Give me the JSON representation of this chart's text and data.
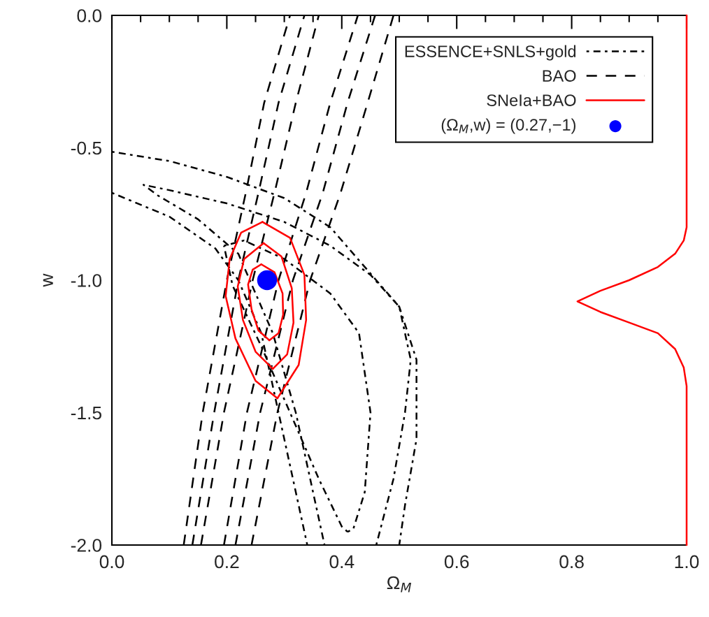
{
  "chart_data": {
    "type": "line",
    "xlabel": "Ω$_{M}$",
    "ylabel": "w",
    "xlim": [
      0.0,
      1.0
    ],
    "ylim": [
      -2.0,
      0.0
    ],
    "xticks": [
      {
        "value": 0.0,
        "label": "0.0"
      },
      0.2,
      0.4,
      0.6,
      0.8,
      {
        "value": 1.0,
        "label": "1.0"
      }
    ],
    "yticks": [
      {
        "value": -2.0,
        "label": "-2.0"
      },
      -1.5,
      {
        "value": -1.0,
        "label": "-1.0"
      },
      -0.5,
      {
        "value": 0.0,
        "label": "0.0"
      }
    ],
    "grid": false,
    "legend": "top right",
    "series": [
      {
        "name": "ESSENCE+SNLS+gold",
        "color": "#000000",
        "line_style": "dotted",
        "x": [
          0.0,
          0.1,
          0.2,
          0.3,
          0.38,
          0.42,
          0.5,
          0.53,
          0.53,
          0.51,
          0.5
        ],
        "values": [
          -0.515,
          -0.55,
          -0.61,
          -0.69,
          -0.8,
          -0.9,
          -1.1,
          -1.3,
          -1.6,
          -1.85,
          -2.0
        ]
      },
      {
        "color": "#000000",
        "line_style": "dotted",
        "x": [
          0.0,
          0.1,
          0.18,
          0.22,
          0.26,
          0.29,
          0.32,
          0.34
        ],
        "values": [
          -0.67,
          -0.76,
          -0.88,
          -1.0,
          -1.2,
          -1.5,
          -1.8,
          -2.0
        ]
      },
      {
        "color": "#000000",
        "line_style": "dotted",
        "x": [
          0.46,
          0.49,
          0.51,
          0.52,
          0.5,
          0.45,
          0.38,
          0.3,
          0.2,
          0.1,
          0.055,
          0.08,
          0.15,
          0.22,
          0.28,
          0.32,
          0.35,
          0.37
        ],
        "values": [
          -2.0,
          -1.75,
          -1.5,
          -1.3,
          -1.1,
          -0.98,
          -0.87,
          -0.78,
          -0.71,
          -0.66,
          -0.64,
          -0.68,
          -0.77,
          -0.9,
          -1.2,
          -1.5,
          -1.8,
          -2.0
        ]
      },
      {
        "color": "#000000",
        "line_style": "dotted",
        "x": [
          0.195,
          0.23,
          0.3,
          0.38,
          0.43,
          0.45,
          0.44,
          0.42,
          0.41
        ],
        "values": [
          -0.87,
          -0.85,
          -0.92,
          -1.05,
          -1.2,
          -1.5,
          -1.8,
          -1.94,
          -1.95
        ]
      },
      {
        "color": "#000000",
        "line_style": "dotted",
        "x": [
          0.41,
          0.4,
          0.36,
          0.31,
          0.26,
          0.21,
          0.195
        ],
        "values": [
          -1.95,
          -1.93,
          -1.75,
          -1.5,
          -1.25,
          -1.02,
          -0.87
        ]
      },
      {
        "name": "BAO",
        "color": "#000000",
        "line_style": "dashed",
        "x": [
          0.125,
          0.158,
          0.2,
          0.233,
          0.265,
          0.31
        ],
        "values": [
          -2.0,
          -1.5,
          -1.0,
          -0.67,
          -0.33,
          0.0
        ]
      },
      {
        "color": "#000000",
        "line_style": "dashed",
        "x": [
          0.14,
          0.178,
          0.22,
          0.255,
          0.29,
          0.335
        ],
        "values": [
          -2.0,
          -1.5,
          -1.0,
          -0.67,
          -0.33,
          0.0
        ]
      },
      {
        "color": "#000000",
        "line_style": "dashed",
        "x": [
          0.155,
          0.195,
          0.245,
          0.283,
          0.32,
          0.36
        ],
        "values": [
          -2.0,
          -1.5,
          -1.0,
          -0.67,
          -0.33,
          0.0
        ]
      },
      {
        "color": "#000000",
        "line_style": "dashed",
        "x": [
          0.195,
          0.235,
          0.29,
          0.338,
          0.38,
          0.428
        ],
        "values": [
          -2.0,
          -1.5,
          -1.0,
          -0.67,
          -0.33,
          0.0
        ]
      },
      {
        "color": "#000000",
        "line_style": "dashed",
        "x": [
          0.215,
          0.258,
          0.315,
          0.367,
          0.41,
          0.458
        ],
        "values": [
          -2.0,
          -1.5,
          -1.0,
          -0.67,
          -0.33,
          0.0
        ]
      },
      {
        "color": "#000000",
        "line_style": "dashed",
        "x": [
          0.243,
          0.288,
          0.345,
          0.398,
          0.445,
          0.49
        ],
        "values": [
          -2.0,
          -1.5,
          -1.0,
          -0.67,
          -0.33,
          0.0
        ]
      },
      {
        "name": "SNeIa+BAO",
        "color": "#ff0000",
        "line_style": "solid",
        "x": [
          0.262,
          0.31,
          0.335,
          0.338,
          0.325,
          0.288
        ],
        "values": [
          -0.78,
          -0.84,
          -0.98,
          -1.15,
          -1.32,
          -1.446
        ]
      },
      {
        "color": "#ff0000",
        "line_style": "solid",
        "x": [
          0.288,
          0.25,
          0.215,
          0.198,
          0.205,
          0.225,
          0.262
        ],
        "values": [
          -1.446,
          -1.38,
          -1.22,
          -1.06,
          -0.92,
          -0.82,
          -0.78
        ]
      },
      {
        "color": "#ff0000",
        "line_style": "solid",
        "x": [
          0.264,
          0.295,
          0.313,
          0.316,
          0.305,
          0.28
        ],
        "values": [
          -0.86,
          -0.91,
          -1.03,
          -1.16,
          -1.28,
          -1.335
        ]
      },
      {
        "color": "#ff0000",
        "line_style": "solid",
        "x": [
          0.28,
          0.25,
          0.228,
          0.219,
          0.23,
          0.264
        ],
        "values": [
          -1.335,
          -1.27,
          -1.15,
          -1.024,
          -0.92,
          -0.86
        ]
      },
      {
        "color": "#ff0000",
        "line_style": "solid",
        "x": [
          0.26,
          0.283,
          0.297,
          0.298,
          0.29,
          0.274
        ],
        "values": [
          -0.94,
          -0.97,
          -1.05,
          -1.13,
          -1.2,
          -1.227
        ]
      },
      {
        "color": "#ff0000",
        "line_style": "solid",
        "x": [
          0.274,
          0.255,
          0.243,
          0.237,
          0.245,
          0.26
        ],
        "values": [
          -1.227,
          -1.19,
          -1.11,
          -1.016,
          -0.96,
          -0.94
        ]
      },
      {
        "color": "#ff0000",
        "line_style": "solid",
        "x": [
          1.0,
          1.0,
          0.995,
          0.98,
          0.95,
          0.9,
          0.85,
          0.81,
          0.85,
          0.9,
          0.95,
          0.98,
          0.995,
          1.0,
          1.0
        ],
        "values": [
          0.0,
          -0.8,
          -0.85,
          -0.9,
          -0.95,
          -1.0,
          -1.04,
          -1.08,
          -1.12,
          -1.16,
          -1.2,
          -1.26,
          -1.33,
          -1.4,
          -2.0
        ]
      },
      {
        "name": "(Ω$_{M}$,w) = (0.27,−1)",
        "type": "scatter",
        "marker": "circle",
        "color": "#0000ff",
        "x": [
          0.27
        ],
        "values": [
          -1.0
        ]
      }
    ]
  }
}
